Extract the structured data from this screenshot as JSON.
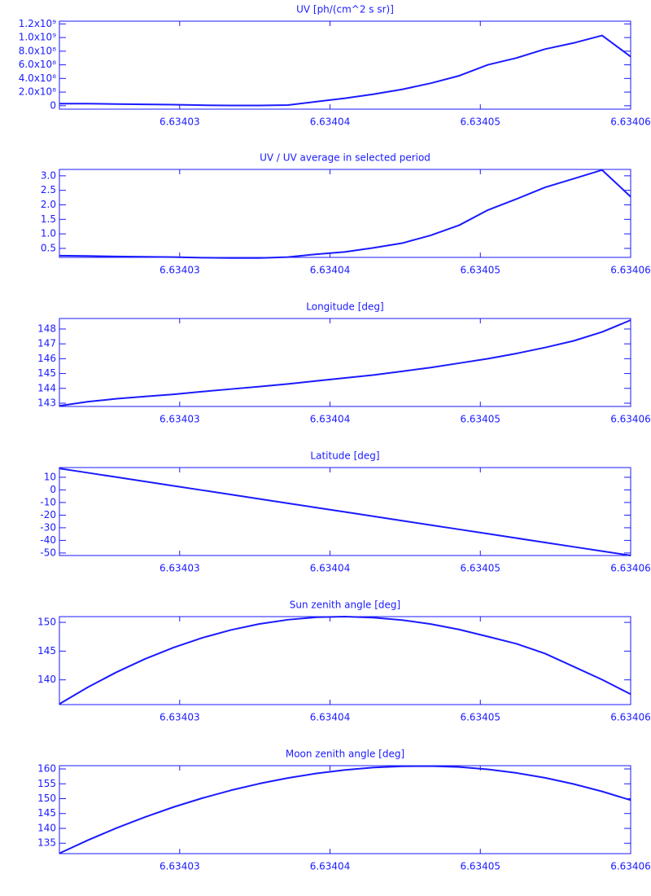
{
  "chart_data": [
    {
      "type": "line",
      "title": "UV [ph/(cm^2 s sr)]",
      "color": "#1a1aff",
      "x": [
        6.634022,
        6.6340239,
        6.6340258,
        6.6340277,
        6.6340296,
        6.6340315,
        6.6340334,
        6.6340353,
        6.6340372,
        6.6340391,
        6.634041,
        6.6340429,
        6.6340448,
        6.6340467,
        6.6340486,
        6.6340505,
        6.6340524,
        6.6340543,
        6.6340562,
        6.6340581,
        6.63406
      ],
      "values": [
        30000000,
        30000000,
        25000000,
        20000000,
        15000000,
        8000000,
        3000000,
        3000000,
        10000000,
        60000000,
        110000000,
        170000000,
        240000000,
        330000000,
        440000000,
        600000000,
        700000000,
        830000000,
        920000000,
        1030000000,
        720000000
      ],
      "xlim": [
        6.634022,
        6.63406
      ],
      "xticks": [
        6.63403,
        6.63404,
        6.63405,
        6.63406
      ],
      "ylim": [
        -50000000,
        1240000000
      ],
      "yticks": [
        0,
        {
          "value": 200000000,
          "label": "2.0x10⁸"
        },
        {
          "value": 400000000,
          "label": "4.0x10⁸"
        },
        {
          "value": 600000000,
          "label": "6.0x10⁸"
        },
        {
          "value": 800000000,
          "label": "8.0x10⁸"
        },
        {
          "value": 1000000000,
          "label": "1.0x10⁹"
        },
        {
          "value": 1200000000,
          "label": "1.2x10⁹"
        }
      ]
    },
    {
      "type": "line",
      "title": "UV / UV average in selected period",
      "color": "#1a1aff",
      "x": [
        6.634022,
        6.6340239,
        6.6340258,
        6.6340277,
        6.6340296,
        6.6340315,
        6.6340334,
        6.6340353,
        6.6340372,
        6.6340391,
        6.634041,
        6.6340429,
        6.6340448,
        6.6340467,
        6.6340486,
        6.6340505,
        6.6340524,
        6.6340543,
        6.6340562,
        6.6340581,
        6.63406
      ],
      "values": [
        0.25,
        0.24,
        0.22,
        0.21,
        0.2,
        0.18,
        0.17,
        0.17,
        0.2,
        0.3,
        0.38,
        0.52,
        0.68,
        0.95,
        1.3,
        1.82,
        2.2,
        2.6,
        2.9,
        3.2,
        2.28
      ],
      "xlim": [
        6.634022,
        6.63406
      ],
      "xticks": [
        6.63403,
        6.63404,
        6.63405,
        6.63406
      ],
      "ylim": [
        0.19,
        3.22
      ],
      "yticks": [
        0.5,
        {
          "value": 1,
          "label": "1.0"
        },
        1.5,
        {
          "value": 2,
          "label": "2.0"
        },
        2.5,
        {
          "value": 3,
          "label": "3.0"
        }
      ]
    },
    {
      "type": "line",
      "title": "Longitude [deg]",
      "color": "#1a1aff",
      "x": [
        6.634022,
        6.6340239,
        6.6340258,
        6.6340277,
        6.6340296,
        6.6340315,
        6.6340334,
        6.6340353,
        6.6340372,
        6.6340391,
        6.634041,
        6.6340429,
        6.6340448,
        6.6340467,
        6.6340486,
        6.6340505,
        6.6340524,
        6.6340543,
        6.6340562,
        6.6340581,
        6.63406
      ],
      "values": [
        142.82,
        143.1,
        143.3,
        143.45,
        143.6,
        143.78,
        143.95,
        144.12,
        144.3,
        144.5,
        144.7,
        144.9,
        145.15,
        145.4,
        145.7,
        146.0,
        146.35,
        146.75,
        147.2,
        147.8,
        148.6
      ],
      "xlim": [
        6.634022,
        6.63406
      ],
      "xticks": [
        6.63403,
        6.63404,
        6.63405,
        6.63406
      ],
      "ylim": [
        142.78,
        148.71
      ],
      "yticks": [
        143,
        144,
        145,
        146,
        147,
        148
      ]
    },
    {
      "type": "line",
      "title": "Latitude [deg]",
      "color": "#1a1aff",
      "x": [
        6.634022,
        6.6340239,
        6.6340258,
        6.6340277,
        6.6340296,
        6.6340315,
        6.6340334,
        6.6340353,
        6.6340372,
        6.6340391,
        6.634041,
        6.6340429,
        6.6340448,
        6.6340467,
        6.6340486,
        6.6340505,
        6.6340524,
        6.6340543,
        6.6340562,
        6.6340581,
        6.63406
      ],
      "values": [
        17,
        13.55,
        10.1,
        6.65,
        3.2,
        -0.25,
        -3.7,
        -7.15,
        -10.6,
        -14.05,
        -17.5,
        -20.95,
        -24.4,
        -27.85,
        -31.3,
        -34.75,
        -38.2,
        -41.65,
        -45.1,
        -48.55,
        -52
      ],
      "xlim": [
        6.634022,
        6.63406
      ],
      "xticks": [
        6.63403,
        6.63404,
        6.63405,
        6.63406
      ],
      "ylim": [
        -52,
        17.7
      ],
      "yticks": [
        -50,
        -40,
        -30,
        -20,
        -10,
        0,
        10
      ]
    },
    {
      "type": "line",
      "title": "Sun zenith angle [deg]",
      "color": "#1a1aff",
      "x": [
        6.634022,
        6.6340239,
        6.6340258,
        6.6340277,
        6.6340296,
        6.6340315,
        6.6340334,
        6.6340353,
        6.6340372,
        6.6340391,
        6.634041,
        6.6340429,
        6.6340448,
        6.6340467,
        6.6340486,
        6.6340505,
        6.6340524,
        6.6340543,
        6.6340562,
        6.6340581,
        6.63406
      ],
      "values": [
        135.8,
        138.73,
        141.34,
        143.64,
        145.63,
        147.31,
        148.67,
        149.72,
        150.46,
        150.89,
        151.0,
        150.83,
        150.4,
        149.71,
        148.75,
        147.53,
        146.28,
        144.58,
        142.31,
        140.04,
        137.5
      ],
      "xlim": [
        6.634022,
        6.63406
      ],
      "xticks": [
        6.63403,
        6.63404,
        6.63405,
        6.63406
      ],
      "ylim": [
        135.7,
        151.0
      ],
      "yticks": [
        140,
        145,
        150
      ]
    },
    {
      "type": "line",
      "title": "Moon zenith angle [deg]",
      "color": "#1a1aff",
      "x": [
        6.634022,
        6.6340239,
        6.6340258,
        6.6340277,
        6.6340296,
        6.6340315,
        6.6340334,
        6.6340353,
        6.6340372,
        6.6340391,
        6.634041,
        6.6340429,
        6.6340448,
        6.6340467,
        6.6340486,
        6.6340505,
        6.6340524,
        6.6340543,
        6.6340562,
        6.6340581,
        6.63406
      ],
      "values": [
        131.6,
        136.04,
        140.12,
        143.83,
        147.19,
        150.17,
        152.8,
        155.06,
        156.96,
        158.49,
        159.66,
        160.47,
        160.91,
        160.98,
        160.64,
        159.87,
        158.66,
        157.02,
        154.94,
        152.43,
        149.5
      ],
      "xlim": [
        6.634022,
        6.63406
      ],
      "xticks": [
        6.63403,
        6.63404,
        6.63405,
        6.63406
      ],
      "ylim": [
        131.5,
        161.1
      ],
      "yticks": [
        135,
        140,
        145,
        150,
        155,
        160
      ]
    }
  ]
}
